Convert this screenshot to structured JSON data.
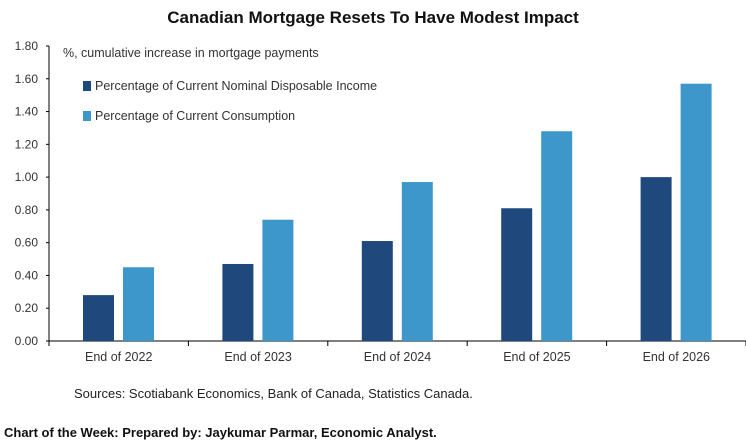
{
  "chart_data": {
    "type": "bar",
    "title": "Canadian Mortgage Resets To Have Modest Impact",
    "ylabel": "%, cumulative increase in mortgage payments",
    "xlabel": "",
    "categories": [
      "End of 2022",
      "End of 2023",
      "End of 2024",
      "End of 2025",
      "End of 2026"
    ],
    "series": [
      {
        "name": "Percentage of Current Nominal Disposable Income",
        "color": "#1f497d",
        "values": [
          0.28,
          0.47,
          0.61,
          0.81,
          1.0
        ]
      },
      {
        "name": "Percentage of Current Consumption",
        "color": "#3e97cb",
        "values": [
          0.45,
          0.74,
          0.97,
          1.28,
          1.57
        ]
      }
    ],
    "ylim": [
      0,
      1.8
    ],
    "yticks": [
      "0.00",
      "0.20",
      "0.40",
      "0.60",
      "0.80",
      "1.00",
      "1.20",
      "1.40",
      "1.60",
      "1.80"
    ],
    "grid": false,
    "legend": "top-left"
  },
  "sources": "Sources: Scotiabank Economics, Bank of Canada, Statistics Canada.",
  "footer": "Chart of the Week: Prepared by: Jaykumar Parmar, Economic Analyst."
}
